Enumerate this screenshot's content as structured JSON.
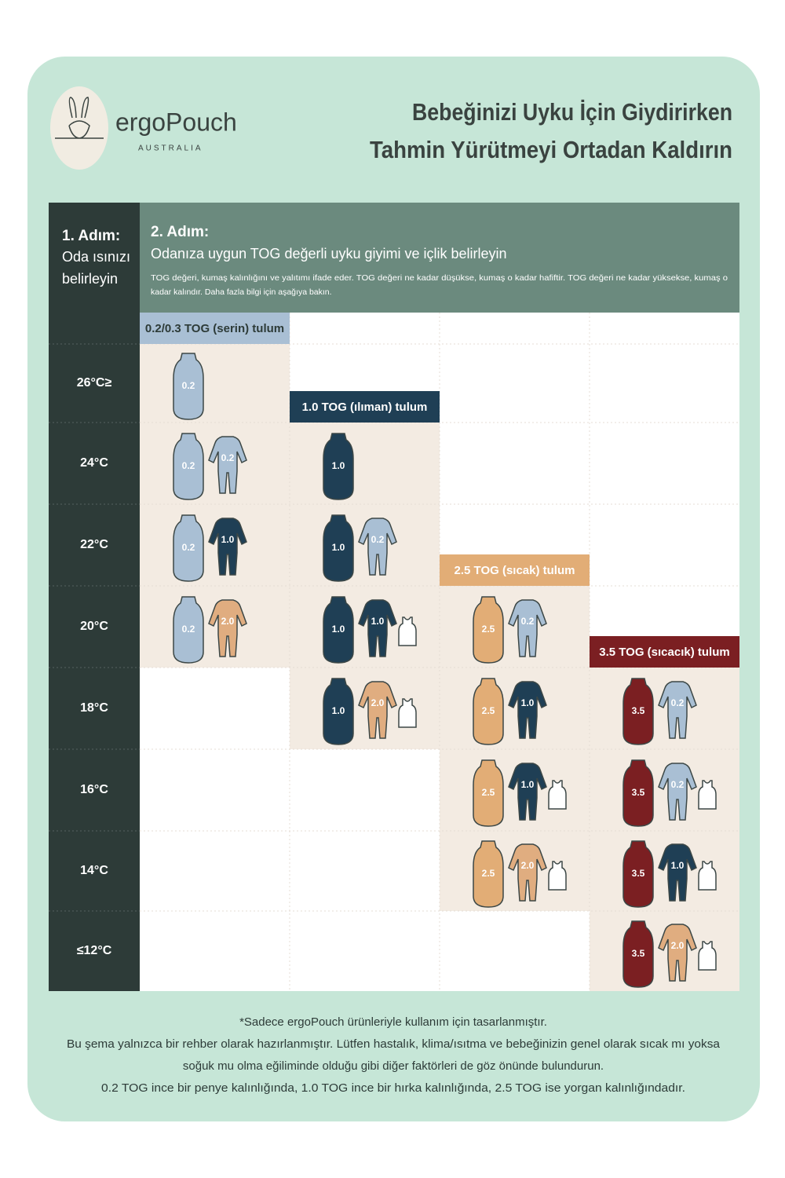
{
  "header": {
    "brand": "ergoPouch",
    "brand_sub": "AUSTRALIA",
    "title_lines": [
      "Bebeğinizi Uyku İçin Giydirirken",
      "Tahmin Yürütmeyi Ortadan Kaldırın"
    ]
  },
  "step1": {
    "title": "1. Adım:",
    "lines": [
      "Oda ısınızı",
      "belirleyin"
    ]
  },
  "step2": {
    "title": "2. Adım:",
    "subtitle": "Odanıza uygun TOG değerli uyku giyimi ve içlik belirleyin",
    "description_lines": [
      "TOG değeri, kumaş kalınlığını ve yalıtımı ifade eder. TOG değeri ne kadar düşükse, kumaş o kadar hafiftir. TOG değeri ne kadar yüksekse, kumaş o",
      "kadar kalındır. Daha fazla bilgi için aşağıya bakın."
    ]
  },
  "palette": {
    "0.2": "#a9bfd4",
    "1.0": "#1f3f55",
    "2.0": "#e0ad80",
    "2.5": "#e2ad76",
    "3.5": "#7b1f22"
  },
  "columns": [
    {
      "label": "0.2/0.3 TOG (serin) tulum",
      "color": "#a9bfd4",
      "text_color": "#2d3b38"
    },
    {
      "label": "1.0 TOG (ılıman) tulum",
      "color": "#1f3f55",
      "text_color": "#ffffff"
    },
    {
      "label": "2.5 TOG (sıcak) tulum",
      "color": "#e2ad76",
      "text_color": "#ffffff"
    },
    {
      "label": "3.5 TOG (sıcacık) tulum",
      "color": "#7b1f22",
      "text_color": "#ffffff"
    }
  ],
  "rows": [
    {
      "temp": "26°C≥",
      "cells": [
        {
          "sack": "0.2"
        },
        null,
        null,
        null
      ]
    },
    {
      "temp": "24°C",
      "cells": [
        {
          "sack": "0.2",
          "suit": "0.2"
        },
        {
          "sack": "1.0"
        },
        null,
        null
      ]
    },
    {
      "temp": "22°C",
      "cells": [
        {
          "sack": "0.2",
          "suit": "1.0"
        },
        {
          "sack": "1.0",
          "suit": "0.2"
        },
        null,
        null
      ]
    },
    {
      "temp": "20°C",
      "cells": [
        {
          "sack": "0.2",
          "suit": "2.0"
        },
        {
          "sack": "1.0",
          "suit": "1.0",
          "vest": true
        },
        {
          "sack": "2.5",
          "suit": "0.2"
        },
        null
      ]
    },
    {
      "temp": "18°C",
      "cells": [
        null,
        {
          "sack": "1.0",
          "suit": "2.0",
          "vest": true
        },
        {
          "sack": "2.5",
          "suit": "1.0"
        },
        {
          "sack": "3.5",
          "suit": "0.2"
        }
      ]
    },
    {
      "temp": "16°C",
      "cells": [
        null,
        null,
        {
          "sack": "2.5",
          "suit": "1.0",
          "vest": true
        },
        {
          "sack": "3.5",
          "suit": "0.2",
          "vest": true
        }
      ]
    },
    {
      "temp": "14°C",
      "cells": [
        null,
        null,
        {
          "sack": "2.5",
          "suit": "2.0",
          "vest": true
        },
        {
          "sack": "3.5",
          "suit": "1.0",
          "vest": true
        }
      ]
    },
    {
      "temp": "≤12°C",
      "cells": [
        null,
        null,
        null,
        {
          "sack": "3.5",
          "suit": "2.0",
          "vest": true
        }
      ]
    }
  ],
  "footer_lines": [
    "*Sadece ergoPouch ürünleriyle kullanım için tasarlanmıştır.",
    "Bu şema yalnızca bir rehber olarak hazırlanmıştır. Lütfen hastalık, klima/ısıtma ve bebeğinizin genel olarak sıcak mı yoksa",
    "soğuk mu olma eğiliminde olduğu gibi diğer faktörleri de göz önünde bulundurun.",
    "0.2 TOG ince bir penye kalınlığında, 1.0 TOG ince bir hırka kalınlığında, 2.5 TOG ise yorgan kalınlığındadır."
  ]
}
